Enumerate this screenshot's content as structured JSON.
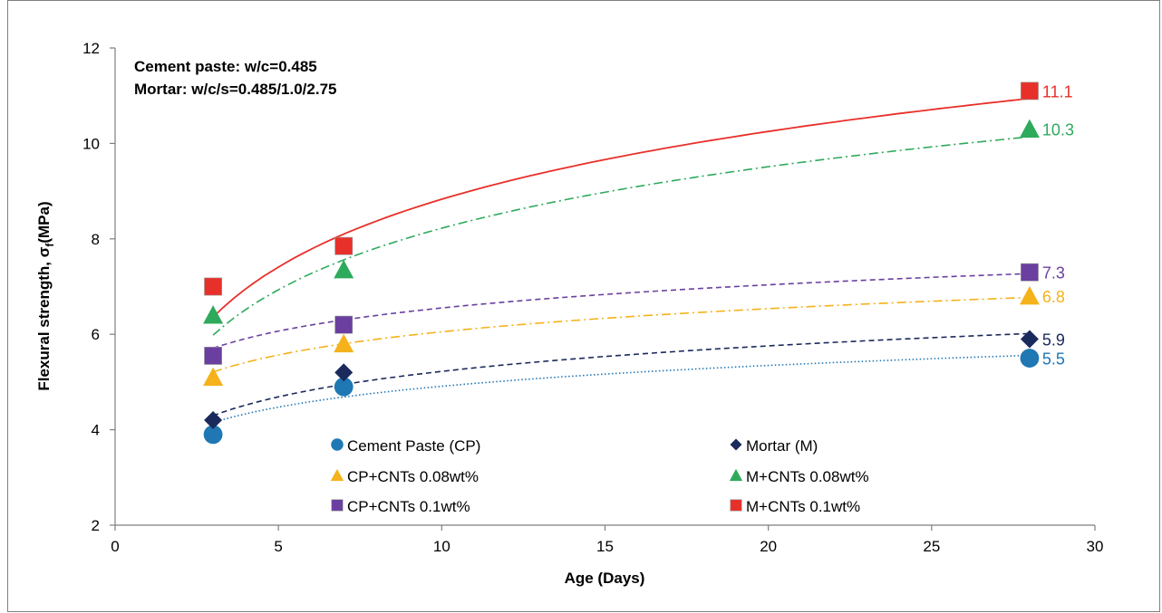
{
  "chart_data": {
    "type": "scatter",
    "xlabel": "Age (Days)",
    "ylabel": "Flexural strength,  σ",
    "ylabel_sub": "f",
    "ylabel_unit": "(MPa)",
    "xlim": [
      0,
      30
    ],
    "ylim": [
      2,
      12
    ],
    "xticks": [
      0,
      5,
      10,
      15,
      20,
      25,
      30
    ],
    "yticks": [
      2,
      4,
      6,
      8,
      10,
      12
    ],
    "grid": false,
    "legend_position": "bottom-center",
    "annotations": [
      "Cement paste: w/c=0.485",
      "Mortar: w/c/s=0.485/1.0/2.75"
    ],
    "series": [
      {
        "name": "Cement Paste (CP)",
        "marker": "circle",
        "color": "#1f77b4",
        "line_style": "dotted",
        "x": [
          3,
          7,
          28
        ],
        "y": [
          3.9,
          4.9,
          5.5
        ],
        "end_label": "5.5",
        "trend": {
          "a": 3.46,
          "b": 0.63
        }
      },
      {
        "name": "Mortar (M)",
        "marker": "diamond",
        "color": "#1b2a5c",
        "line_style": "dashed",
        "x": [
          3,
          7,
          28
        ],
        "y": [
          4.2,
          5.2,
          5.9
        ],
        "end_label": "5.9",
        "trend": {
          "a": 3.45,
          "b": 0.77
        }
      },
      {
        "name": "CP+CNTs 0.08wt%",
        "marker": "triangle",
        "color": "#f5b21b",
        "line_style": "dashdot",
        "x": [
          3,
          7,
          28
        ],
        "y": [
          5.1,
          5.8,
          6.8
        ],
        "end_label": "6.8",
        "trend": {
          "a": 4.44,
          "b": 0.7
        }
      },
      {
        "name": "M+CNTs 0.08wt%",
        "marker": "triangle",
        "color": "#2eaa5c",
        "line_style": "dashdot",
        "x": [
          3,
          7,
          28
        ],
        "y": [
          6.4,
          7.35,
          10.3
        ],
        "end_label": "10.3",
        "trend": {
          "a": 3.94,
          "b": 1.86
        }
      },
      {
        "name": "CP+CNTs 0.1wt%",
        "marker": "square",
        "color": "#6a3fa0",
        "line_style": "dashed",
        "x": [
          3,
          7,
          28
        ],
        "y": [
          5.55,
          6.2,
          7.3
        ],
        "end_label": "7.3",
        "trend": {
          "a": 4.94,
          "b": 0.7
        }
      },
      {
        "name": "M+CNTs 0.1wt%",
        "marker": "square",
        "color": "#e8302a",
        "line_style": "solid",
        "x": [
          3,
          7,
          28
        ],
        "y": [
          7.0,
          7.85,
          11.1
        ],
        "end_label": "11.1",
        "trend": {
          "a": 4.11,
          "b": 2.05
        }
      }
    ]
  }
}
